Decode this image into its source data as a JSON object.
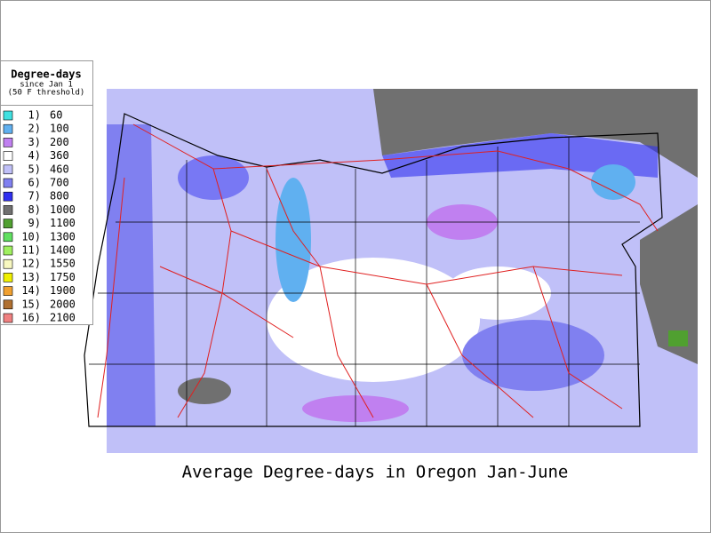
{
  "legend": {
    "title": "Degree-days",
    "subtitle": "since Jan 1",
    "note": "(50 F threshold)",
    "items": [
      {
        "index": "1)",
        "value": 60,
        "color": "#40e0e0"
      },
      {
        "index": "2)",
        "value": 100,
        "color": "#60b0f0"
      },
      {
        "index": "3)",
        "value": 200,
        "color": "#c080f0"
      },
      {
        "index": "4)",
        "value": 360,
        "color": "#ffffff"
      },
      {
        "index": "5)",
        "value": 460,
        "color": "#c0c0f8"
      },
      {
        "index": "6)",
        "value": 700,
        "color": "#8080f0"
      },
      {
        "index": "7)",
        "value": 800,
        "color": "#3030f0"
      },
      {
        "index": "8)",
        "value": 1000,
        "color": "#707070"
      },
      {
        "index": "9)",
        "value": 1100,
        "color": "#50a030"
      },
      {
        "index": "10)",
        "value": 1300,
        "color": "#60e060"
      },
      {
        "index": "11)",
        "value": 1400,
        "color": "#a0f060"
      },
      {
        "index": "12)",
        "value": 1550,
        "color": "#f8f8c0"
      },
      {
        "index": "13)",
        "value": 1750,
        "color": "#f0f000"
      },
      {
        "index": "14)",
        "value": 1900,
        "color": "#f0a030"
      },
      {
        "index": "15)",
        "value": 2000,
        "color": "#b07030"
      },
      {
        "index": "16)",
        "value": 2100,
        "color": "#f08080"
      }
    ]
  },
  "caption": "Average Degree-days in Oregon Jan-June"
}
